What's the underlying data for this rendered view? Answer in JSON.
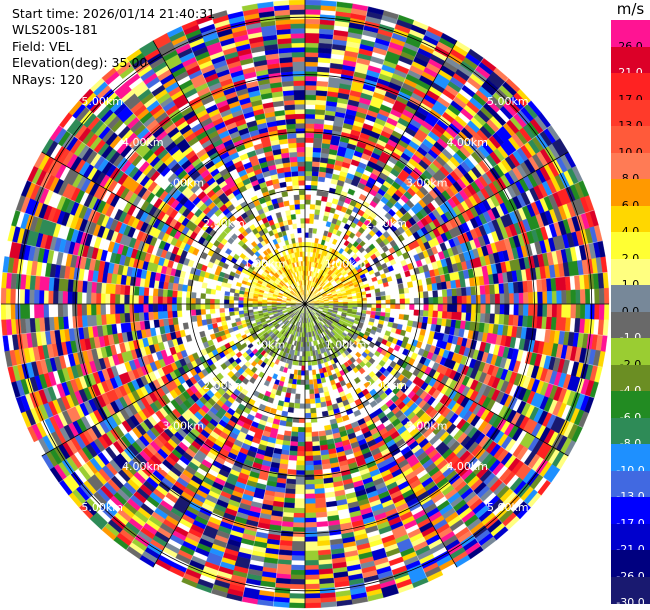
{
  "info": {
    "start_time": "Start time: 2026/01/14 21:40:31",
    "site": "WLS200s-181",
    "field": "Field: VEL",
    "elevation": "Elevation(deg): 35.00",
    "nrays": "NRays: 120"
  },
  "colorbar": {
    "unit": "m/s",
    "bins": [
      {
        "label": "26.0",
        "color": "#ff1493"
      },
      {
        "label": "21.0",
        "color": "#dc0028"
      },
      {
        "label": "17.0",
        "color": "#ff2222"
      },
      {
        "label": "13.0",
        "color": "#ff3a2a"
      },
      {
        "label": "10.0",
        "color": "#ff5a3a"
      },
      {
        "label": "8.0",
        "color": "#ff7b55"
      },
      {
        "label": "6.0",
        "color": "#ff9900"
      },
      {
        "label": "4.0",
        "color": "#ffd700"
      },
      {
        "label": "2.0",
        "color": "#ffff33"
      },
      {
        "label": "1.0",
        "color": "#ffff80"
      },
      {
        "label": "0.0",
        "color": "#778899"
      },
      {
        "label": "-1.0",
        "color": "#696969"
      },
      {
        "label": "-2.0",
        "color": "#9acd32"
      },
      {
        "label": "-4.0",
        "color": "#6b8e23"
      },
      {
        "label": "-6.0",
        "color": "#228b22"
      },
      {
        "label": "-8.0",
        "color": "#2e8b57"
      },
      {
        "label": "-10.0",
        "color": "#1e90ff"
      },
      {
        "label": "-13.0",
        "color": "#4169e1"
      },
      {
        "label": "-17.0",
        "color": "#0000ff"
      },
      {
        "label": "-21.0",
        "color": "#0000cd"
      },
      {
        "label": "-26.0",
        "color": "#000080"
      },
      {
        "label": "-30.0",
        "color": "#191970"
      }
    ]
  },
  "chart_data": {
    "type": "heatmap",
    "projection": "polar",
    "field": "VEL",
    "units": "m/s",
    "nrays": 120,
    "range_rings_km": [
      1,
      2,
      3,
      4,
      5
    ],
    "ring_labels": [
      "1.00km",
      "2.00km",
      "3.00km",
      "4.00km",
      "5.00km"
    ],
    "max_range_km": 5.3,
    "grid": true,
    "colorbar_placement": "right",
    "pattern": "near range (< 1 km) dominated by -2 to 2 m/s with yellow (positive) to the north and green (negative) to the south; beyond ~1 km values are noisy across the full range -30 to 26 m/s"
  }
}
